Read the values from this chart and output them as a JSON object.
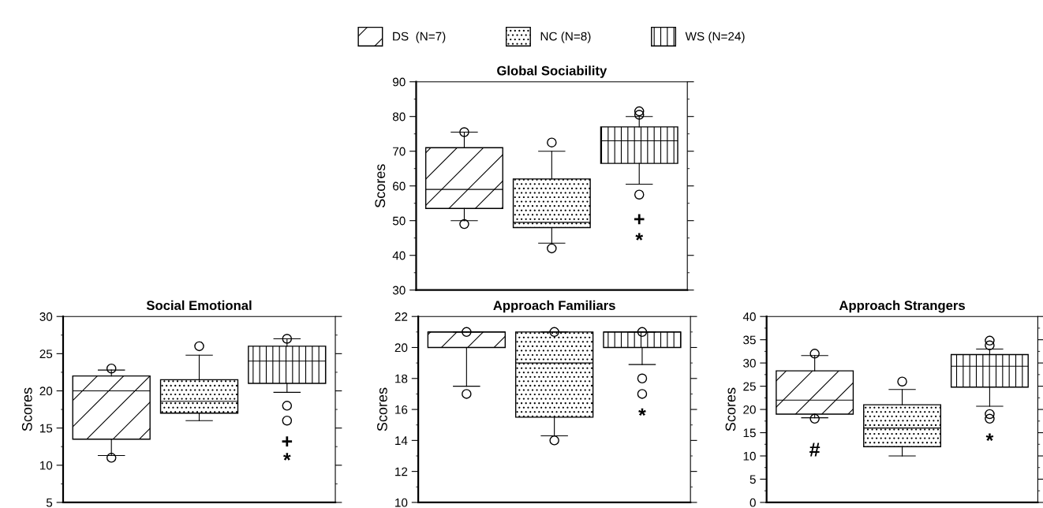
{
  "chart_data": [
    {
      "type": "box",
      "title": "Global Sociability",
      "ylabel": "Scores",
      "categories": [
        null,
        null,
        null
      ],
      "ylim": [
        30,
        90
      ],
      "yticks": [
        30,
        40,
        50,
        60,
        70,
        80,
        90
      ],
      "legend": "top",
      "grid": false,
      "annotations": [
        "+",
        "*"
      ],
      "series": [
        {
          "name": "DS  (N=7)",
          "color": "#000000",
          "boxes": [
            {
              "low": 50,
              "q1": 53.5,
              "median": 59,
              "q3": 71,
              "high": 75.5,
              "outliers": [
                75.5,
                49
              ]
            },
            null,
            null
          ]
        },
        {
          "name": "NC (N=8)",
          "color": "#000000",
          "boxes": [
            null,
            {
              "low": 43.5,
              "q1": 48,
              "median": 49.5,
              "q3": 62,
              "high": 70,
              "outliers": [
                72.5,
                42
              ]
            },
            null
          ]
        },
        {
          "name": "WS (N=24)",
          "color": "#000000",
          "boxes": [
            null,
            null,
            {
              "low": 60.5,
              "q1": 66.5,
              "median": 73,
              "q3": 77,
              "high": 80,
              "outliers": [
                81.5,
                80.5,
                57.5
              ]
            }
          ]
        }
      ]
    },
    {
      "type": "box",
      "title": "Social Emotional",
      "ylabel": "Scores",
      "categories": [
        null,
        null,
        null
      ],
      "ylim": [
        5,
        30
      ],
      "yticks": [
        5,
        10,
        15,
        20,
        25,
        30
      ],
      "grid": false,
      "annotations": [
        "+",
        "*"
      ],
      "series": [
        {
          "color": "#000000",
          "boxes": [
            {
              "low": 11.3,
              "q1": 13.5,
              "median": 20,
              "q3": 22,
              "high": 22.8,
              "outliers": [
                23,
                11
              ]
            },
            null,
            null
          ]
        },
        {
          "color": "#000000",
          "boxes": [
            null,
            {
              "low": 16,
              "q1": 17,
              "median": 18.6,
              "q3": 21.5,
              "high": 24.8,
              "outliers": [
                26
              ]
            },
            null
          ]
        },
        {
          "color": "#000000",
          "boxes": [
            null,
            null,
            {
              "low": 19.8,
              "q1": 21,
              "median": 24,
              "q3": 26,
              "high": 27,
              "outliers": [
                27,
                18,
                16
              ]
            }
          ]
        }
      ]
    },
    {
      "type": "box",
      "title": "Approach Familiars",
      "ylabel": "Scores",
      "categories": [
        null,
        null,
        null
      ],
      "ylim": [
        10,
        22
      ],
      "yticks": [
        10,
        12,
        14,
        16,
        18,
        20,
        22
      ],
      "grid": false,
      "annotations": [
        "*"
      ],
      "series": [
        {
          "color": "#000000",
          "boxes": [
            {
              "low": 17.5,
              "q1": 20,
              "median": 21,
              "q3": 21,
              "high": 21,
              "outliers": [
                21,
                17
              ]
            },
            null,
            null
          ]
        },
        {
          "color": "#000000",
          "boxes": [
            null,
            {
              "low": 14.3,
              "q1": 15.5,
              "median": 19,
              "q3": 21,
              "high": 21,
              "outliers": [
                21,
                14
              ]
            },
            null
          ]
        },
        {
          "color": "#000000",
          "boxes": [
            null,
            null,
            {
              "low": 18.9,
              "q1": 20,
              "median": 21,
              "q3": 21,
              "high": 21,
              "outliers": [
                21,
                18,
                17
              ]
            }
          ]
        }
      ]
    },
    {
      "type": "box",
      "title": "Approach Strangers",
      "ylabel": "Scores",
      "categories": [
        null,
        null,
        null
      ],
      "ylim": [
        0,
        40
      ],
      "yticks": [
        0,
        5,
        10,
        15,
        20,
        25,
        30,
        35,
        40
      ],
      "grid": false,
      "annotations": [
        "#",
        "*"
      ],
      "series": [
        {
          "color": "#000000",
          "boxes": [
            {
              "low": 18.2,
              "q1": 19,
              "median": 22,
              "q3": 28.3,
              "high": 31.6,
              "outliers": [
                32,
                18
              ]
            },
            null,
            null
          ]
        },
        {
          "color": "#000000",
          "boxes": [
            null,
            {
              "low": 10,
              "q1": 12,
              "median": 16,
              "q3": 21,
              "high": 24.3,
              "outliers": [
                26
              ]
            },
            null
          ]
        },
        {
          "color": "#000000",
          "boxes": [
            null,
            null,
            {
              "low": 20.7,
              "q1": 24.8,
              "median": 29.3,
              "q3": 31.8,
              "high": 33,
              "outliers": [
                34.8,
                33.8,
                19,
                18
              ]
            }
          ]
        }
      ]
    }
  ]
}
